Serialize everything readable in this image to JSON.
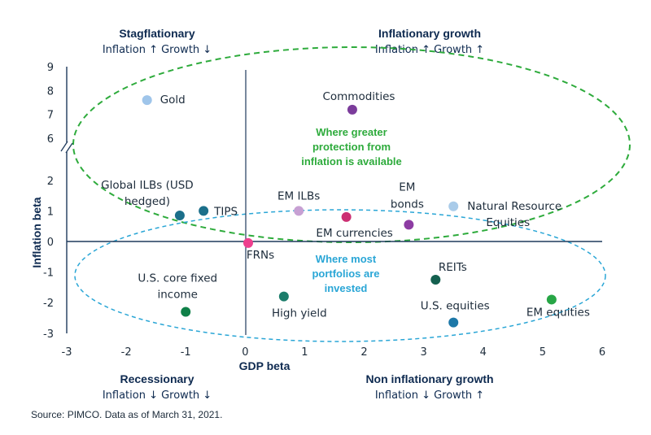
{
  "quadrants": {
    "top_left": {
      "title": "Stagflationary",
      "subtitle": "Inflation ↑ Growth ↓"
    },
    "top_right": {
      "title": "Inflationary growth",
      "subtitle": "Inflation ↑ Growth ↑"
    },
    "bottom_left": {
      "title": "Recessionary",
      "subtitle": "Inflation ↓ Growth ↓"
    },
    "bottom_right": {
      "title": "Non inflationary growth",
      "subtitle": "Inflation ↓ Growth ↑"
    }
  },
  "annotations": {
    "green": [
      "Where greater",
      "protection from",
      "inflation is available"
    ],
    "blue": [
      "Where most",
      "portfolios are",
      "invested"
    ],
    "green_color": "#2eab3c",
    "blue_color": "#2aa6d6"
  },
  "source": "Source: PIMCO. Data as of March 31, 2021.",
  "chart_data": {
    "type": "scatter",
    "xlabel": "GDP beta",
    "ylabel": "Inflation beta",
    "xlim": [
      -3,
      6
    ],
    "x_ticks": [
      "-3",
      "-2",
      "-1",
      "0",
      "1",
      "2",
      "3",
      "4",
      "5",
      "6"
    ],
    "y_ticks": [
      "-3",
      "-2",
      "-1",
      "0",
      "1",
      "2",
      "6",
      "7",
      "8",
      "9"
    ],
    "y_axis_break": "between 2 and 6",
    "grid": false,
    "points": [
      {
        "label": "Gold",
        "x": -1.65,
        "y": 7.6,
        "color": "#9fc5ea"
      },
      {
        "label": "Commodities",
        "x": 1.8,
        "y": 7.2,
        "color": "#7b3c9b"
      },
      {
        "label": "Global ILBs (USD hedged)",
        "x": -1.1,
        "y": 0.85,
        "color": "#1b6f8a"
      },
      {
        "label": "TIPS",
        "x": -0.7,
        "y": 1.0,
        "color": "#1b6f8a"
      },
      {
        "label": "EM ILBs",
        "x": 0.9,
        "y": 1.0,
        "color": "#c7a0d3"
      },
      {
        "label": "EM currencies",
        "x": 1.7,
        "y": 0.8,
        "color": "#cc2f72"
      },
      {
        "label": "EM bonds",
        "x": 2.75,
        "y": 0.55,
        "color": "#8d3ca3"
      },
      {
        "label": "Natural Resource Equities",
        "x": 3.5,
        "y": 1.15,
        "color": "#a9cbe9"
      },
      {
        "label": "FRNs",
        "x": 0.05,
        "y": -0.05,
        "color": "#ee3f8e"
      },
      {
        "label": "U.S. core fixed income",
        "x": -1.0,
        "y": -2.3,
        "color": "#0f8048"
      },
      {
        "label": "High yield",
        "x": 0.65,
        "y": -1.8,
        "color": "#1c7d6b"
      },
      {
        "label": "REITs",
        "x": 3.2,
        "y": -1.25,
        "color": "#14604f"
      },
      {
        "label": "U.S. equities",
        "x": 3.5,
        "y": -2.65,
        "color": "#1d78a8"
      },
      {
        "label": "EM equities",
        "x": 5.15,
        "y": -1.9,
        "color": "#27a646"
      }
    ]
  }
}
